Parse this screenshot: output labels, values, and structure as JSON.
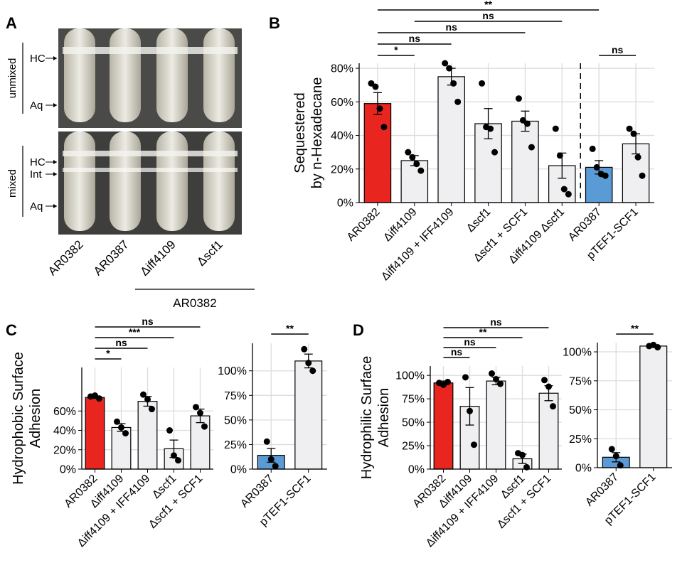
{
  "panel_labels": [
    "A",
    "B",
    "C",
    "D"
  ],
  "photo": {
    "row_labels": [
      "unmixed",
      "mixed"
    ],
    "markers_top": [
      "HC",
      "Aq"
    ],
    "markers_bottom": [
      "HC",
      "Int",
      "Aq"
    ],
    "columns": [
      "AR0382",
      "AR0387",
      "Δiff4109",
      "Δscf1"
    ],
    "group_label": "AR0382"
  },
  "chart_data": [
    {
      "type": "bar",
      "ylabel": [
        "Sequestered",
        "by n-Hexadecane"
      ],
      "categories": [
        "AR0382",
        "Δiff4109",
        "Δiff4109 + IFF4109",
        "Δscf1",
        "Δscf1 + SCF1",
        "Δiff4109 Δscf1",
        "AR0387",
        "pTEF1-SCF1"
      ],
      "values": [
        59,
        25,
        75,
        47,
        48.5,
        22,
        21,
        35
      ],
      "errors": [
        6.5,
        3,
        5,
        9,
        6,
        7.5,
        4,
        6
      ],
      "points": [
        [
          71,
          69,
          56,
          45
        ],
        [
          30,
          27,
          23,
          19
        ],
        [
          83,
          80,
          71,
          60
        ],
        [
          71,
          45,
          44,
          30
        ],
        [
          62,
          49,
          47,
          33
        ],
        [
          44,
          28,
          8,
          5
        ],
        [
          32,
          21,
          17,
          16
        ],
        [
          44,
          41,
          27,
          16
        ]
      ],
      "colors": [
        "#e8251f",
        "#efeff1",
        "#efeff1",
        "#efeff1",
        "#efeff1",
        "#efeff1",
        "#5b9bd5",
        "#efeff1"
      ],
      "ylim": [
        0,
        83
      ],
      "yticks": [
        {
          "value": 0,
          "label": "0%"
        },
        {
          "value": 20,
          "label": "20%"
        },
        {
          "value": 40,
          "label": "40%"
        },
        {
          "value": 60,
          "label": "60%"
        },
        {
          "value": 80,
          "label": "80%"
        }
      ],
      "grid": true,
      "divider_after": 5,
      "comparisons": [
        {
          "from": 0,
          "to": 1,
          "label": "*"
        },
        {
          "from": 6,
          "to": 7,
          "label": "ns"
        },
        {
          "from": 0,
          "to": 2,
          "label": "ns"
        },
        {
          "from": 0,
          "to": 4,
          "label": "ns"
        },
        {
          "from": 1,
          "to": 5,
          "label": "ns"
        },
        {
          "from": 0,
          "to": 6,
          "label": "**"
        }
      ]
    },
    {
      "type": "bar",
      "ylabel": [
        "Hydrophobic Surface",
        "Adhesion"
      ],
      "categories": [
        "AR0382",
        "Δiff4109",
        "Δiff4109 + IFF4109",
        "Δscf1",
        "Δscf1 + SCF1"
      ],
      "values": [
        74,
        43,
        70,
        21,
        55
      ],
      "errors": [
        1,
        4,
        5,
        9,
        7
      ],
      "points": [
        [
          75,
          76,
          73
        ],
        [
          49,
          43,
          37
        ],
        [
          77,
          72,
          62
        ],
        [
          40,
          14,
          9
        ],
        [
          64,
          58,
          44
        ]
      ],
      "colors": [
        "#e8251f",
        "#efeff1",
        "#efeff1",
        "#efeff1",
        "#efeff1"
      ],
      "ylim": [
        0,
        105
      ],
      "yticks": [
        {
          "value": 0,
          "label": "0%"
        },
        {
          "value": 20,
          "label": "20%"
        },
        {
          "value": 40,
          "label": "40%"
        },
        {
          "value": 60,
          "label": "60%"
        }
      ],
      "grid": true,
      "comparisons": [
        {
          "from": 0,
          "to": 1,
          "label": "*"
        },
        {
          "from": 0,
          "to": 2,
          "label": "ns"
        },
        {
          "from": 0,
          "to": 3,
          "label": "***"
        },
        {
          "from": 0,
          "to": 4,
          "label": "ns"
        }
      ]
    },
    {
      "type": "bar",
      "categories": [
        "AR0387",
        "pTEF1-SCF1"
      ],
      "values": [
        14,
        110
      ],
      "errors": [
        7,
        7
      ],
      "points": [
        [
          28,
          10,
          3
        ],
        [
          122,
          108,
          100
        ]
      ],
      "colors": [
        "#5b9bd5",
        "#efeff1"
      ],
      "ylim": [
        0,
        128
      ],
      "yticks": [
        {
          "value": 0,
          "label": "0%"
        },
        {
          "value": 25,
          "label": "25%"
        },
        {
          "value": 50,
          "label": "50%"
        },
        {
          "value": 75,
          "label": "75%"
        },
        {
          "value": 100,
          "label": "100%"
        }
      ],
      "grid": true,
      "comparisons": [
        {
          "from": 0,
          "to": 1,
          "label": "**"
        }
      ]
    },
    {
      "type": "bar",
      "ylabel": [
        "Hydrophilic Surface",
        "Adhesion"
      ],
      "categories": [
        "AR0382",
        "Δiff4109",
        "Δiff4109 + IFF4109",
        "Δscf1",
        "Δscf1 + SCF1"
      ],
      "values": [
        92,
        67,
        94,
        11,
        81
      ],
      "errors": [
        2,
        20,
        4,
        5,
        8
      ],
      "points": [
        [
          92,
          90,
          93
        ],
        [
          98,
          62,
          26
        ],
        [
          102,
          96,
          91
        ],
        [
          17,
          15,
          2
        ],
        [
          95,
          88,
          67
        ]
      ],
      "colors": [
        "#e8251f",
        "#efeff1",
        "#efeff1",
        "#efeff1",
        "#efeff1"
      ],
      "ylim": [
        0,
        110
      ],
      "yticks": [
        {
          "value": 0,
          "label": "0%"
        },
        {
          "value": 25,
          "label": "25%"
        },
        {
          "value": 50,
          "label": "50%"
        },
        {
          "value": 75,
          "label": "75%"
        },
        {
          "value": 100,
          "label": "100%"
        }
      ],
      "grid": true,
      "comparisons": [
        {
          "from": 0,
          "to": 1,
          "label": "ns"
        },
        {
          "from": 0,
          "to": 2,
          "label": "ns"
        },
        {
          "from": 0,
          "to": 3,
          "label": "**"
        },
        {
          "from": 0,
          "to": 4,
          "label": "ns"
        }
      ]
    },
    {
      "type": "bar",
      "categories": [
        "AR0387",
        "pTEF1-SCF1"
      ],
      "values": [
        9,
        105
      ],
      "errors": [
        4,
        1
      ],
      "points": [
        [
          16,
          10,
          2
        ],
        [
          105,
          106,
          104
        ]
      ],
      "colors": [
        "#5b9bd5",
        "#efeff1"
      ],
      "ylim": [
        0,
        108
      ],
      "yticks": [
        {
          "value": 0,
          "label": "0%"
        },
        {
          "value": 25,
          "label": "25%"
        },
        {
          "value": 50,
          "label": "50%"
        },
        {
          "value": 75,
          "label": "75%"
        },
        {
          "value": 100,
          "label": "100%"
        }
      ],
      "grid": true,
      "comparisons": [
        {
          "from": 0,
          "to": 1,
          "label": "**"
        }
      ]
    }
  ]
}
